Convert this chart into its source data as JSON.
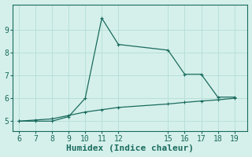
{
  "xlabel": "Humidex (Indice chaleur)",
  "background_color": "#d5f0eb",
  "grid_color": "#b8e0d8",
  "line_color": "#1a6b5e",
  "x_line1": [
    6,
    7,
    8,
    9,
    10,
    11,
    12,
    15,
    16,
    17,
    18,
    19
  ],
  "y_line1": [
    5.0,
    5.05,
    5.1,
    5.25,
    5.4,
    5.5,
    5.6,
    5.75,
    5.82,
    5.88,
    5.93,
    6.0
  ],
  "x_line2": [
    6,
    7,
    8,
    9,
    10,
    11,
    12,
    15,
    16,
    17,
    18,
    19
  ],
  "y_line2": [
    5.0,
    5.0,
    5.0,
    5.2,
    6.0,
    9.5,
    8.35,
    8.1,
    7.05,
    7.05,
    6.05,
    6.05
  ],
  "xlim": [
    5.6,
    19.8
  ],
  "ylim": [
    4.55,
    10.1
  ],
  "xticks": [
    6,
    7,
    8,
    9,
    10,
    11,
    12,
    15,
    16,
    17,
    18,
    19
  ],
  "yticks": [
    5,
    6,
    7,
    8,
    9
  ],
  "tick_fontsize": 7,
  "xlabel_fontsize": 8
}
